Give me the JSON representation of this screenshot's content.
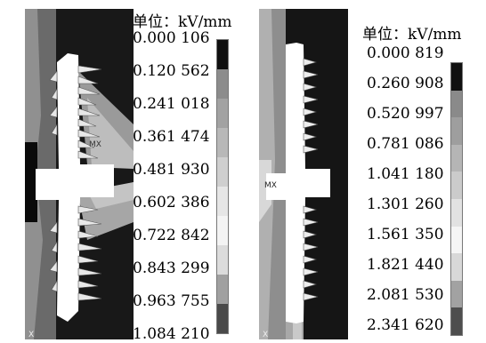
{
  "left_panel": {
    "unit_label": "单位：kV/mm",
    "legend_values": [
      "0.000 106",
      "0.120 562",
      "0.241 018",
      "0.361 474",
      "0.481 930",
      "0.602 386",
      "0.722 842",
      "0.843 299",
      "0.963 755",
      "1.084 210"
    ],
    "colorbar_colors": [
      "#101010",
      "#8c8c8c",
      "#a2a2a2",
      "#b8b8b8",
      "#cfcfcf",
      "#e6e6e6",
      "#f4f4f4",
      "#dcdcdc",
      "#a0a0a0",
      "#4a4a4a"
    ],
    "plot_annotation": "MX",
    "axis_label": "X"
  },
  "right_panel": {
    "unit_label": "单位：kV/mm",
    "legend_values": [
      "0.000 819",
      "0.260 908",
      "0.520 997",
      "0.781 086",
      "1.041 180",
      "1.301 260",
      "1.561 350",
      "1.821 440",
      "2.081 530",
      "2.341 620"
    ],
    "colorbar_colors": [
      "#101010",
      "#8a8a8a",
      "#9e9e9e",
      "#b5b5b5",
      "#cbcbcb",
      "#e2e2e2",
      "#f5f5f5",
      "#d8d8d8",
      "#a2a2a2",
      "#4e4e4e"
    ],
    "plot_annotation": "MX",
    "axis_label": "X"
  }
}
